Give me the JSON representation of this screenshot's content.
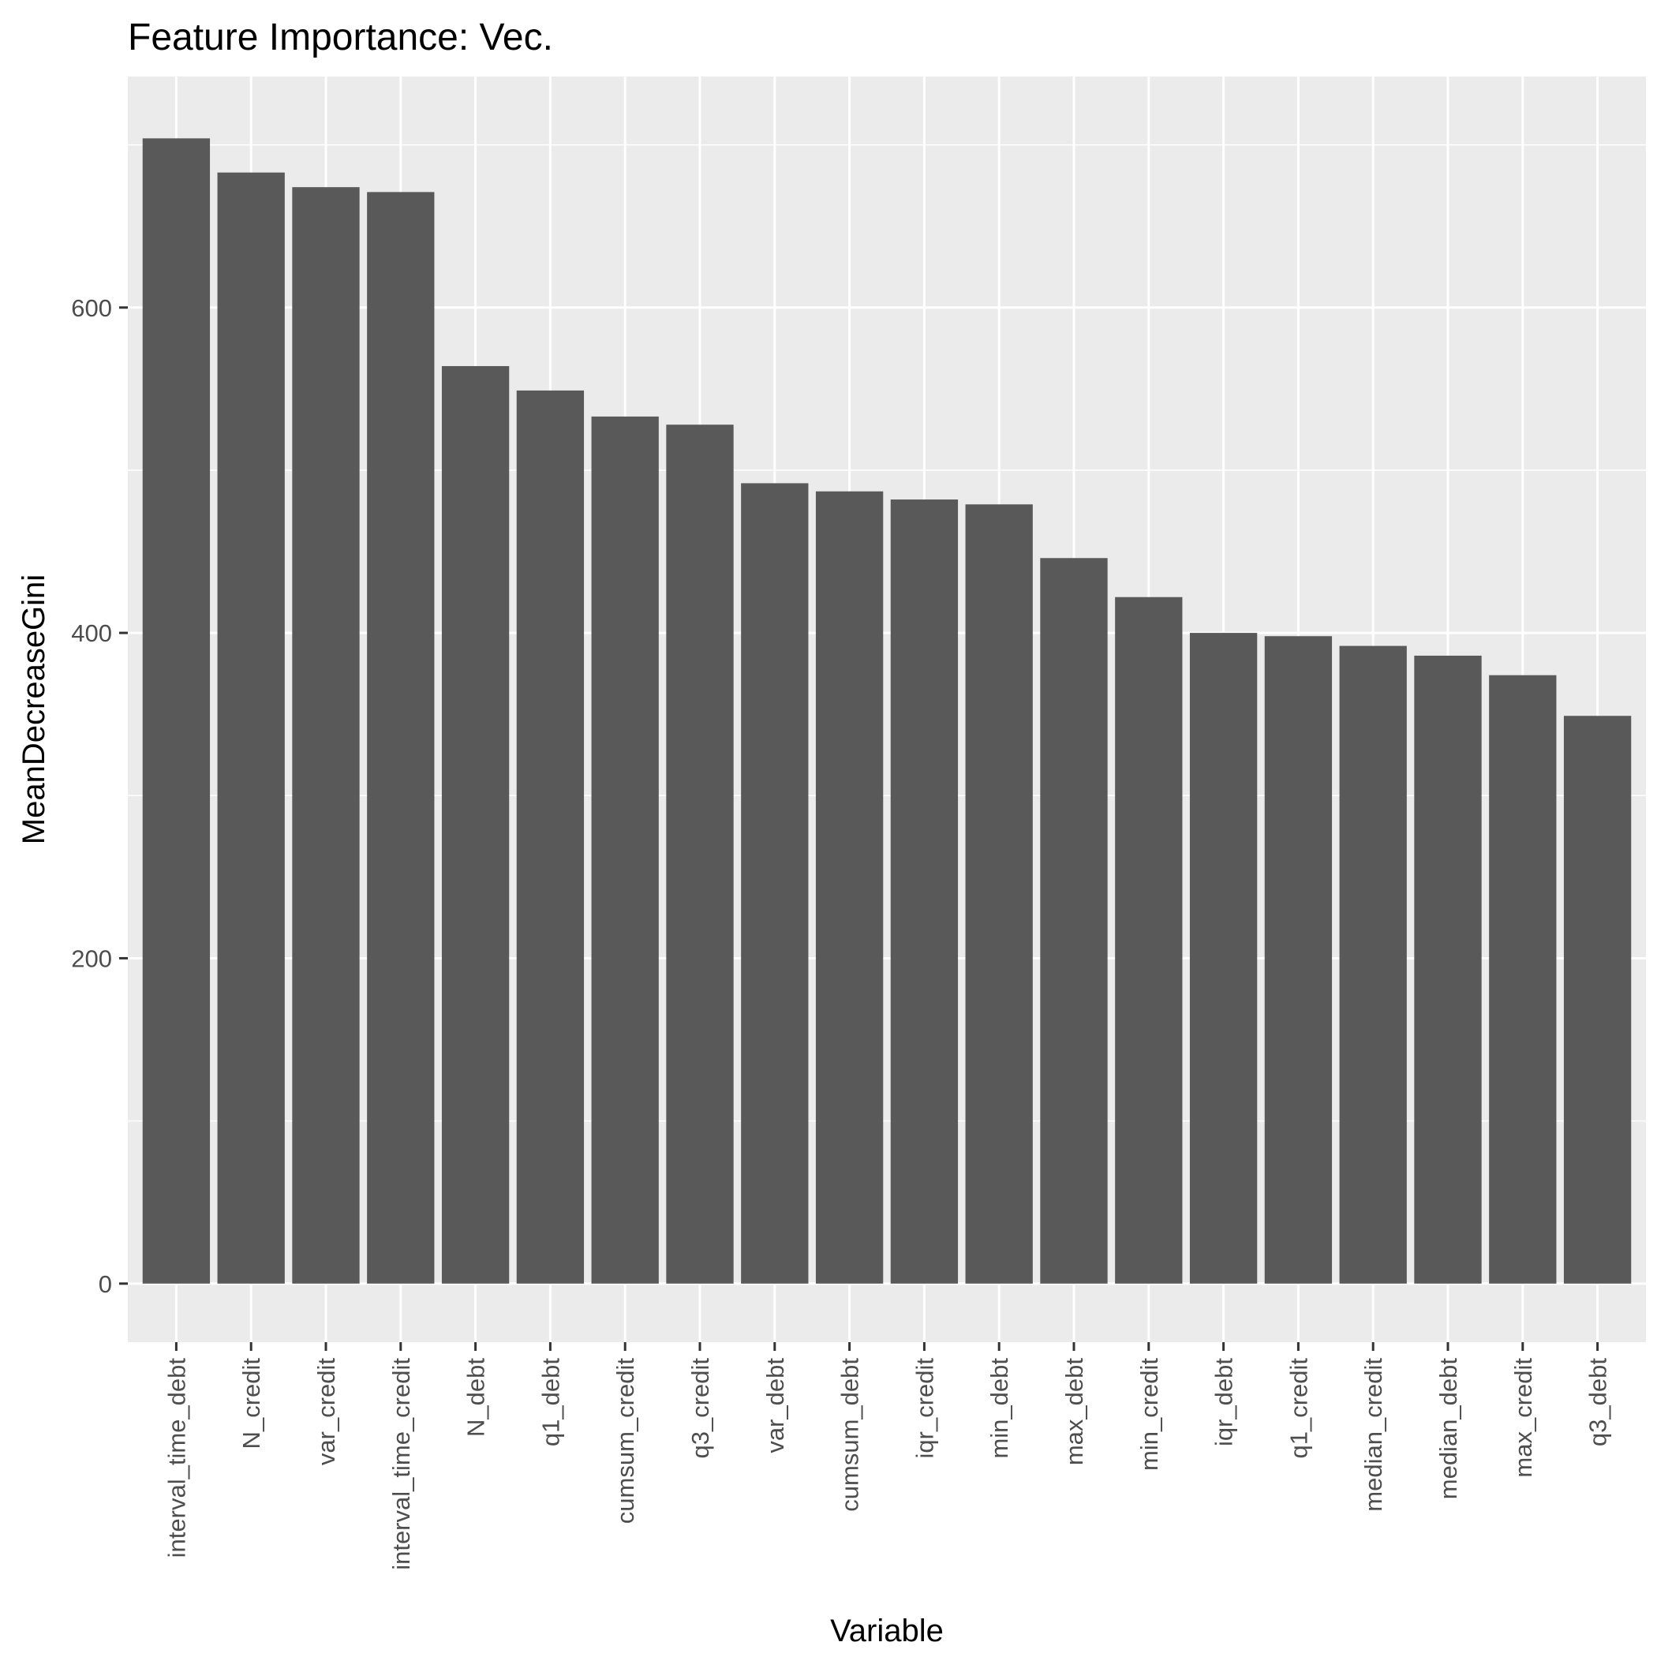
{
  "chart_data": {
    "type": "bar",
    "title": "Feature Importance: Vec.",
    "xlabel": "Variable",
    "ylabel": "MeanDecreaseGini",
    "categories": [
      "interval_time_debt",
      "N_credit",
      "var_credit",
      "interval_time_credit",
      "N_debt",
      "q1_debt",
      "cumsum_credit",
      "q3_credit",
      "var_debt",
      "cumsum_debt",
      "iqr_credit",
      "min_debt",
      "max_debt",
      "min_credit",
      "iqr_debt",
      "q1_credit",
      "median_credit",
      "median_debt",
      "max_credit",
      "q3_debt"
    ],
    "values": [
      704,
      683,
      674,
      671,
      564,
      549,
      533,
      528,
      492,
      487,
      482,
      479,
      446,
      422,
      400,
      398,
      392,
      386,
      374,
      349
    ],
    "yticks": [
      0,
      200,
      400,
      600
    ],
    "ylim": [
      -36,
      742
    ],
    "grid": true,
    "legend": "none",
    "colors": {
      "bar": "#595959",
      "panel": "#ebebeb",
      "grid": "#ffffff"
    }
  }
}
